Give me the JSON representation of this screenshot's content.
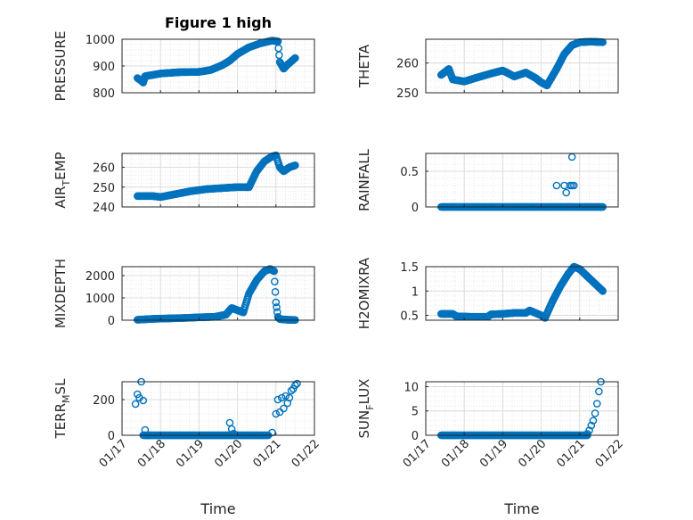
{
  "figure": {
    "title": "Figure 1 high",
    "marker_color": "#0072BD",
    "grid": true,
    "minor_grid": true
  },
  "chart_data": [
    {
      "type": "scatter",
      "ylabel": "PRESSURE",
      "ylim": [
        800,
        1000
      ],
      "yticks": [
        800,
        900,
        1000
      ],
      "xlim": [
        17.0,
        22.0
      ],
      "title": "Figure 1 high",
      "segments": [
        {
          "x": [
            17.4,
            17.5,
            17.55,
            17.6
          ],
          "y": [
            855,
            845,
            838,
            860
          ]
        },
        {
          "x": [
            17.6,
            18.0,
            18.5,
            19.0,
            19.3,
            19.6,
            19.8,
            20.0,
            20.3,
            20.6,
            20.9,
            21.05
          ],
          "y": [
            862,
            872,
            877,
            878,
            885,
            903,
            920,
            945,
            970,
            985,
            995,
            992
          ]
        },
        {
          "x": [
            21.05,
            21.1,
            21.2,
            21.3
          ],
          "y": [
            992,
            915,
            890,
            905
          ]
        },
        {
          "x": [
            21.3,
            21.5
          ],
          "y": [
            905,
            930
          ]
        }
      ]
    },
    {
      "type": "scatter",
      "ylabel": "THETA",
      "ylim": [
        250,
        268
      ],
      "yticks": [
        250,
        260
      ],
      "xlim": [
        17.0,
        22.0
      ],
      "segments": [
        {
          "x": [
            17.4,
            17.5,
            17.6,
            17.7
          ],
          "y": [
            256,
            257,
            258,
            254.5
          ]
        },
        {
          "x": [
            17.7,
            18.0,
            18.3,
            18.7,
            19.0,
            19.3,
            19.6,
            19.85,
            20.0,
            20.15
          ],
          "y": [
            254.5,
            253.8,
            255,
            256.5,
            257.5,
            255.5,
            256.8,
            255,
            253.5,
            252.5
          ]
        },
        {
          "x": [
            20.15,
            20.4,
            20.6,
            20.8,
            21.0,
            21.3,
            21.6
          ],
          "y": [
            252.5,
            258,
            263,
            266,
            267,
            267.2,
            267
          ]
        }
      ]
    },
    {
      "type": "scatter",
      "ylabel": "AIR_TEMP",
      "ylim": [
        240,
        267
      ],
      "yticks": [
        240,
        250,
        260
      ],
      "xlim": [
        17.0,
        22.0
      ],
      "segments": [
        {
          "x": [
            17.4,
            17.8,
            18.0,
            18.4,
            18.8,
            19.2,
            19.6,
            20.0,
            20.3
          ],
          "y": [
            245.5,
            245.5,
            245,
            246.5,
            248,
            249,
            249.5,
            250,
            250
          ]
        },
        {
          "x": [
            20.3,
            20.5,
            20.7,
            20.9,
            21.0
          ],
          "y": [
            250,
            258,
            263,
            265.5,
            266
          ]
        },
        {
          "x": [
            21.0,
            21.1,
            21.2,
            21.35,
            21.5
          ],
          "y": [
            266,
            260,
            258,
            260,
            261
          ]
        }
      ]
    },
    {
      "type": "scatter",
      "ylabel": "RAINFALL",
      "ylim": [
        0,
        0.75
      ],
      "yticks": [
        0,
        0.5
      ],
      "xlim": [
        17.0,
        22.0
      ],
      "baseline": {
        "x": [
          17.4,
          21.6
        ],
        "y": 0
      },
      "points": {
        "x": [
          20.4,
          20.6,
          20.65,
          20.75,
          20.8,
          20.85,
          20.8,
          20.7
        ],
        "y": [
          0.3,
          0.3,
          0.2,
          0.3,
          0.3,
          0.3,
          0.7,
          0.0
        ]
      }
    },
    {
      "type": "scatter",
      "ylabel": "MIXDEPTH",
      "ylim": [
        0,
        2400
      ],
      "yticks": [
        0,
        1000,
        2000
      ],
      "xlim": [
        17.0,
        22.0
      ],
      "segments": [
        {
          "x": [
            17.4,
            17.8,
            18.2,
            18.6,
            19.0,
            19.4,
            19.7
          ],
          "y": [
            20,
            60,
            80,
            100,
            130,
            150,
            250
          ]
        },
        {
          "x": [
            19.7,
            19.85,
            20.0,
            20.15
          ],
          "y": [
            250,
            550,
            450,
            350
          ]
        },
        {
          "x": [
            20.15,
            20.3,
            20.5,
            20.7,
            20.85,
            20.95
          ],
          "y": [
            350,
            1200,
            1800,
            2200,
            2300,
            2200
          ]
        },
        {
          "x": [
            20.95,
            21.0,
            21.05,
            21.1,
            21.3,
            21.5
          ],
          "y": [
            2200,
            800,
            150,
            50,
            20,
            10
          ]
        }
      ]
    },
    {
      "type": "scatter",
      "ylabel": "H2OMIXRA",
      "ylim": [
        0.4,
        1.5
      ],
      "yticks": [
        0.5,
        1,
        1.5
      ],
      "xlim": [
        17.0,
        22.0
      ],
      "segments": [
        {
          "x": [
            17.4,
            17.7,
            17.8,
            18.2,
            18.6,
            18.7
          ],
          "y": [
            0.53,
            0.53,
            0.48,
            0.47,
            0.47,
            0.52
          ]
        },
        {
          "x": [
            18.7,
            19.0,
            19.3,
            19.6,
            19.7,
            20.0,
            20.1
          ],
          "y": [
            0.52,
            0.53,
            0.55,
            0.55,
            0.6,
            0.5,
            0.45
          ]
        },
        {
          "x": [
            20.1,
            20.3,
            20.5,
            20.7,
            20.85,
            21.0,
            21.2,
            21.4,
            21.6
          ],
          "y": [
            0.45,
            0.8,
            1.1,
            1.35,
            1.5,
            1.45,
            1.3,
            1.15,
            1.0
          ]
        }
      ]
    },
    {
      "type": "scatter",
      "ylabel": "TERR_MSL",
      "ylim": [
        0,
        300
      ],
      "yticks": [
        0,
        200
      ],
      "xlim": [
        17.0,
        22.0
      ],
      "xlabel": "Time",
      "xticklabels": [
        "01/17",
        "01/18",
        "01/19",
        "01/20",
        "01/21",
        "01/22"
      ],
      "baseline": {
        "x": [
          17.55,
          20.8
        ],
        "y": 0
      },
      "points": {
        "x": [
          17.35,
          17.4,
          17.45,
          17.5,
          17.55,
          17.6,
          17.65,
          17.7,
          19.8,
          19.85,
          19.9,
          20.9,
          21.0,
          21.05,
          21.1,
          21.15,
          21.2,
          21.25,
          21.3,
          21.35,
          21.4,
          21.45,
          21.5,
          21.55
        ],
        "y": [
          175,
          230,
          210,
          300,
          195,
          30,
          0,
          0,
          70,
          35,
          10,
          15,
          120,
          200,
          130,
          210,
          150,
          220,
          180,
          210,
          250,
          260,
          280,
          290
        ]
      }
    },
    {
      "type": "scatter",
      "ylabel": "SUN_FLUX",
      "ylim": [
        0,
        11
      ],
      "yticks": [
        0,
        5,
        10
      ],
      "xlim": [
        17.0,
        22.0
      ],
      "xlabel": "Time",
      "xticklabels": [
        "01/17",
        "01/18",
        "01/19",
        "01/20",
        "01/21",
        "01/22"
      ],
      "baseline": {
        "x": [
          17.4,
          21.2
        ],
        "y": 0
      },
      "points": {
        "x": [
          21.2,
          21.25,
          21.3,
          21.35,
          21.4,
          21.45,
          21.5,
          21.55
        ],
        "y": [
          0.3,
          1,
          2,
          3,
          4.5,
          6.5,
          9,
          11
        ]
      }
    }
  ]
}
